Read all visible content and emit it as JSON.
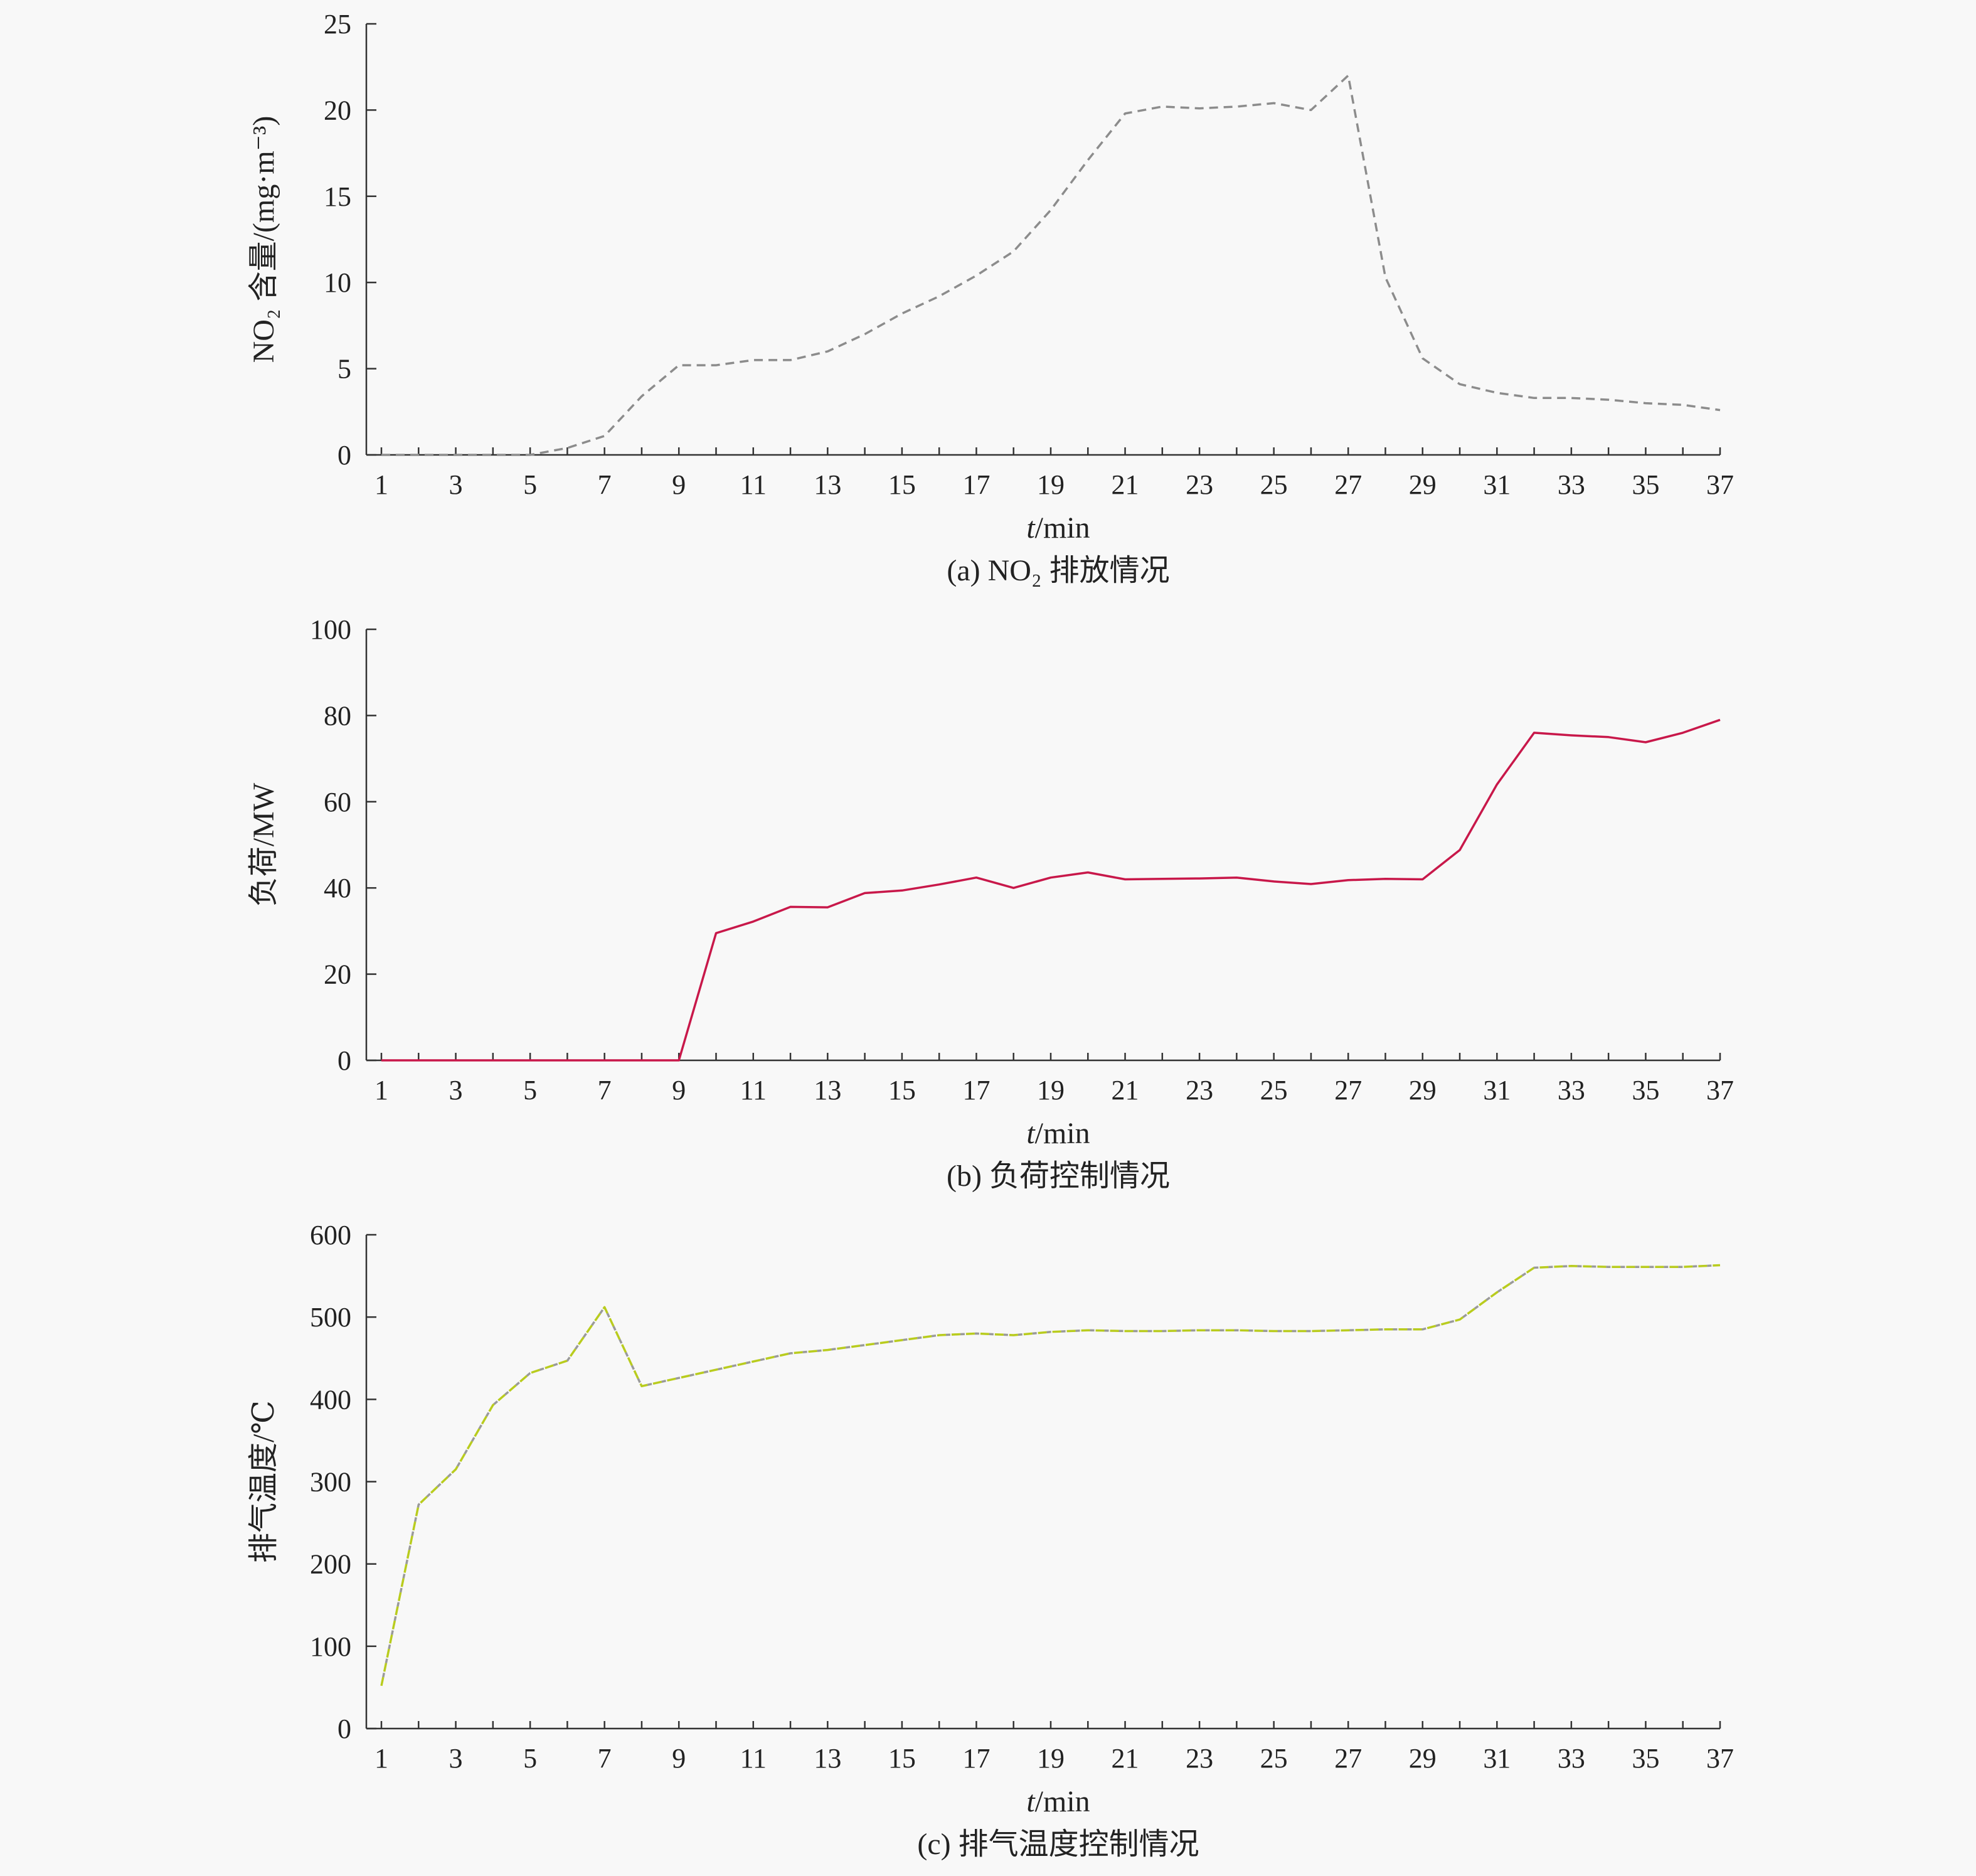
{
  "chart_data": [
    {
      "type": "line",
      "caption": "(a) NO₂ 排放情况",
      "xlabel_italic": "t",
      "xlabel_rest": "/min",
      "ylabel": "NO₂ 含量/(mg·m⁻³)",
      "ylim": [
        0,
        25
      ],
      "yticks": [
        "0",
        "5",
        "10",
        "15",
        "20",
        "25"
      ],
      "xlim": [
        1,
        37
      ],
      "xticks": [
        "1",
        "3",
        "5",
        "7",
        "9",
        "11",
        "13",
        "15",
        "17",
        "19",
        "21",
        "23",
        "25",
        "27",
        "29",
        "31",
        "33",
        "35",
        "37"
      ],
      "line_style": "dashed",
      "color": "#8c8c8c",
      "series": [
        {
          "x": [
            1,
            2,
            3,
            4,
            5,
            6,
            7,
            8,
            9,
            10,
            11,
            12,
            13,
            14,
            15,
            16,
            17,
            18,
            19,
            20,
            21,
            22,
            23,
            24,
            25,
            26,
            27,
            28,
            29,
            30,
            31,
            32,
            33,
            34,
            35,
            36,
            37
          ],
          "values": [
            0,
            0,
            0,
            0,
            0,
            0.4,
            1.1,
            3.4,
            5.2,
            5.2,
            5.5,
            5.5,
            6.0,
            7.0,
            8.2,
            9.2,
            10.4,
            11.8,
            14.2,
            17.1,
            19.8,
            20.2,
            20.1,
            20.2,
            20.4,
            20.0,
            22.0,
            10.3,
            5.6,
            4.1,
            3.6,
            3.3,
            3.3,
            3.2,
            3.0,
            2.9,
            2.6
          ]
        }
      ]
    },
    {
      "type": "line",
      "caption": "(b) 负荷控制情况",
      "xlabel_italic": "t",
      "xlabel_rest": "/min",
      "ylabel": "负荷/MW",
      "ylim": [
        0,
        100
      ],
      "yticks": [
        "0",
        "20",
        "40",
        "60",
        "80",
        "100"
      ],
      "xlim": [
        1,
        37
      ],
      "xticks": [
        "1",
        "3",
        "5",
        "7",
        "9",
        "11",
        "13",
        "15",
        "17",
        "19",
        "21",
        "23",
        "25",
        "27",
        "29",
        "31",
        "33",
        "35",
        "37"
      ],
      "line_style": "solid",
      "color": "#c8184a",
      "series": [
        {
          "x": [
            1,
            2,
            3,
            4,
            5,
            6,
            7,
            8,
            9,
            10,
            11,
            12,
            13,
            14,
            15,
            16,
            17,
            18,
            19,
            20,
            21,
            22,
            23,
            24,
            25,
            26,
            27,
            28,
            29,
            30,
            31,
            32,
            33,
            34,
            35,
            36,
            37
          ],
          "values": [
            0,
            0,
            0,
            0,
            0,
            0,
            0,
            0,
            0,
            29.5,
            32.2,
            35.6,
            35.5,
            38.8,
            39.4,
            40.8,
            42.4,
            40.0,
            42.4,
            43.6,
            42.0,
            42.1,
            42.2,
            42.4,
            41.5,
            40.9,
            41.8,
            42.1,
            42.0,
            48.8,
            64.0,
            76.0,
            75.4,
            75.0,
            73.8,
            76.0,
            79.0
          ]
        }
      ]
    },
    {
      "type": "line",
      "caption": "(c) 排气温度控制情况",
      "xlabel_italic": "t",
      "xlabel_rest": "/min",
      "ylabel": "排气温度/℃",
      "ylim": [
        0,
        600
      ],
      "yticks": [
        "0",
        "100",
        "200",
        "300",
        "400",
        "500",
        "600"
      ],
      "xlim": [
        1,
        37
      ],
      "xticks": [
        "1",
        "3",
        "5",
        "7",
        "9",
        "11",
        "13",
        "15",
        "17",
        "19",
        "21",
        "23",
        "25",
        "27",
        "29",
        "31",
        "33",
        "35",
        "37"
      ],
      "line_style": "dashed",
      "color": "#b9cc1e",
      "color_alt": "#9a9a9a",
      "series": [
        {
          "x": [
            1,
            2,
            3,
            4,
            5,
            6,
            7,
            8,
            9,
            10,
            11,
            12,
            13,
            14,
            15,
            16,
            17,
            18,
            19,
            20,
            21,
            22,
            23,
            24,
            25,
            26,
            27,
            28,
            29,
            30,
            31,
            32,
            33,
            34,
            35,
            36,
            37
          ],
          "values": [
            52,
            272,
            315,
            393,
            432,
            447,
            512,
            416,
            426,
            436,
            446,
            456,
            460,
            466,
            472,
            478,
            480,
            478,
            482,
            484,
            483,
            483,
            484,
            484,
            483,
            483,
            484,
            485,
            485,
            497,
            530,
            560,
            562,
            561,
            561,
            561,
            563
          ]
        }
      ]
    }
  ]
}
